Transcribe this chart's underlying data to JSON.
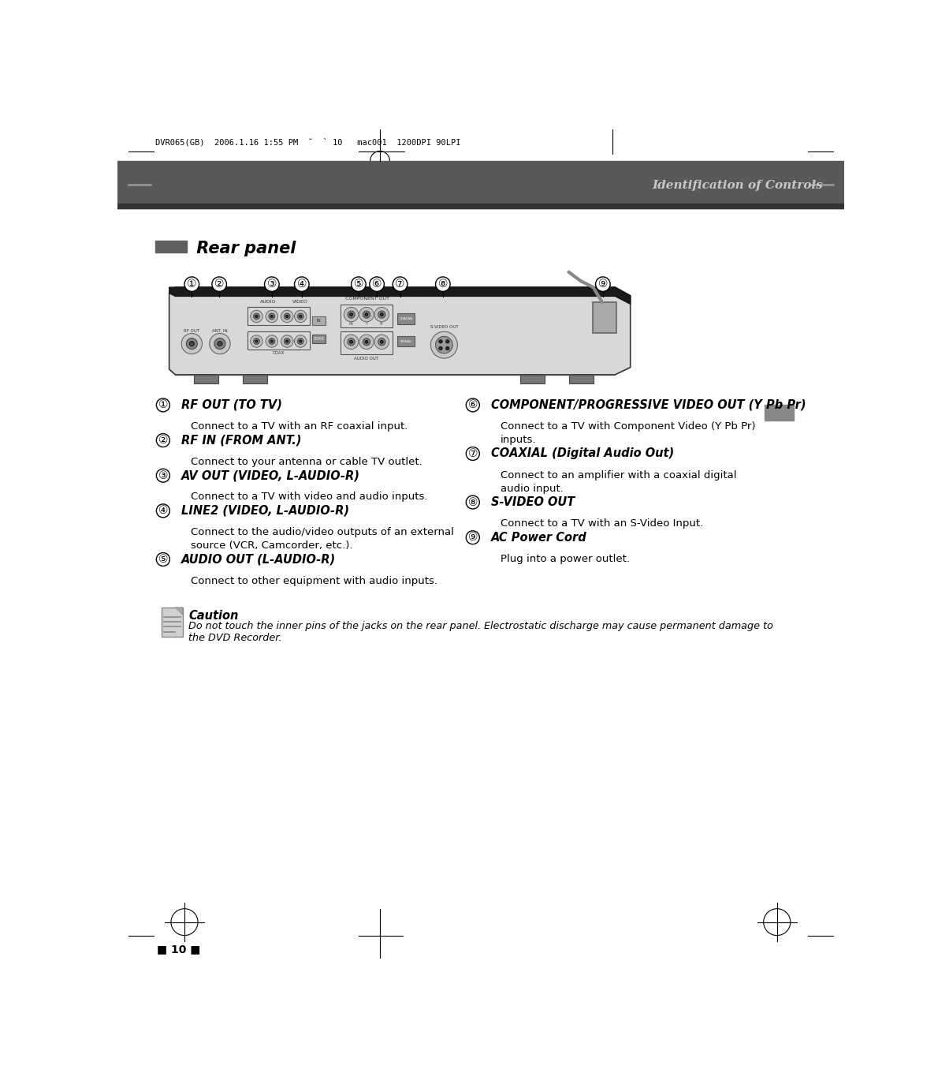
{
  "page_bg": "#ffffff",
  "header_bar_color": "#595959",
  "header_bar_dark": "#333333",
  "header_text": "Identification of Controls",
  "header_text_color": "#c8c8c8",
  "top_text": "DVR065(GB)  2006.1.16 1:55 PM  ˘  ` 10   mac001  1200DPI 90LPI",
  "section_title": "Rear panel",
  "section_bar_color": "#606060",
  "page_number": "10",
  "items_left": [
    {
      "num": "①",
      "title": "RF OUT (TO TV)",
      "desc": "Connect to a TV with an RF coaxial input."
    },
    {
      "num": "②",
      "title": "RF IN (FROM ANT.)",
      "desc": "Connect to your antenna or cable TV outlet."
    },
    {
      "num": "③",
      "title": "AV OUT (VIDEO, L-AUDIO-R)",
      "desc": "Connect to a TV with video and audio inputs."
    },
    {
      "num": "④",
      "title": "LINE2 (VIDEO, L-AUDIO-R)",
      "desc": "Connect to the audio/video outputs of an external\nsource (VCR, Camcorder, etc.)."
    },
    {
      "num": "⑤",
      "title": "AUDIO OUT (L-AUDIO-R)",
      "desc": "Connect to other equipment with audio inputs."
    }
  ],
  "items_right": [
    {
      "num": "⑥",
      "title": "COMPONENT/PROGRESSIVE VIDEO OUT (Y Pb Pr)",
      "desc": "Connect to a TV with Component Video (Y Pb Pr)\ninputs."
    },
    {
      "num": "⑦",
      "title": "COAXIAL (Digital Audio Out)",
      "desc": "Connect to an amplifier with a coaxial digital\naudio input."
    },
    {
      "num": "⑧",
      "title": "S-VIDEO OUT",
      "desc": "Connect to a TV with an S-Video Input."
    },
    {
      "num": "⑨",
      "title": "AC Power Cord",
      "desc": "Plug into a power outlet."
    }
  ],
  "caution_title": "Caution",
  "caution_line1": "Do not touch the inner pins of the jacks on the rear panel. Electrostatic discharge may cause permanent damage to",
  "caution_line2": "the DVD Recorder.",
  "device_color": "#d8d8d8",
  "device_dark": "#aaaaaa",
  "device_top_strip": "#1a1a1a",
  "connector_bg": "#bbbbbb"
}
